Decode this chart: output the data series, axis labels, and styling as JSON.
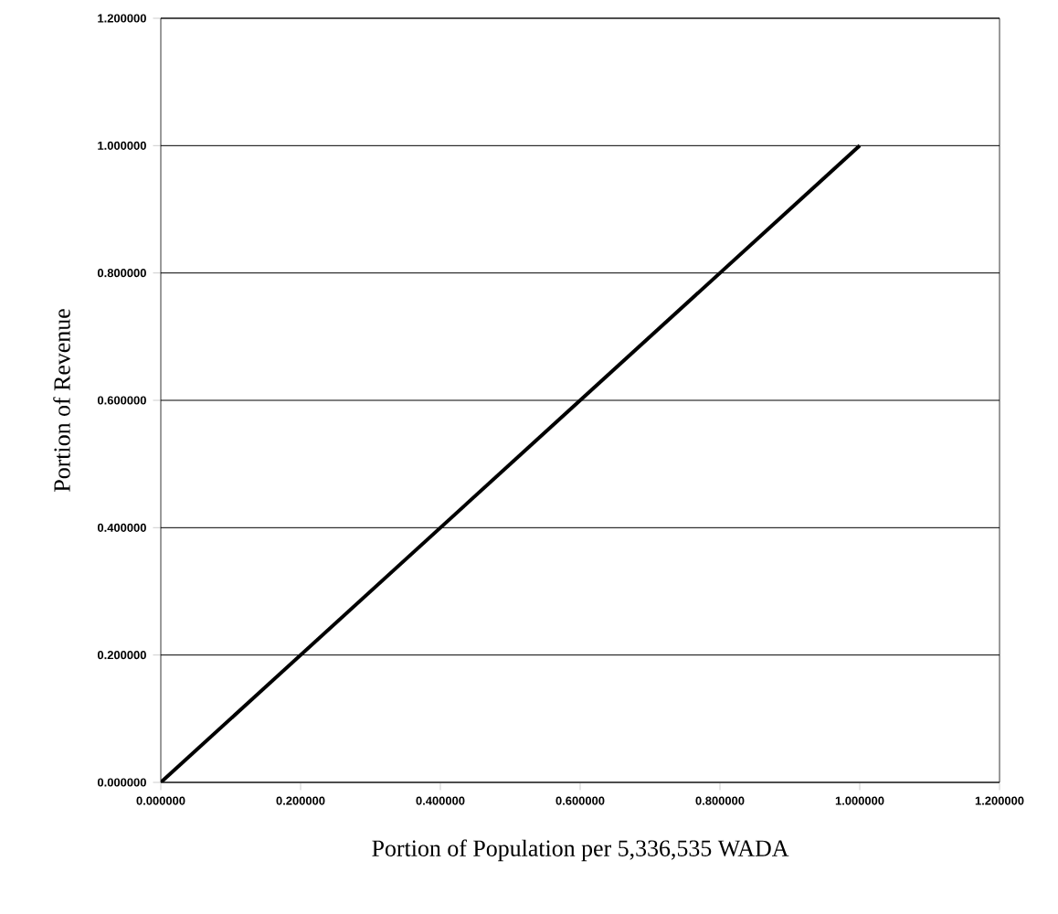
{
  "chart_data": {
    "type": "line",
    "xlabel": "Portion of Population per 5,336,535 WADA",
    "ylabel": "Portion of Revenue",
    "x": [
      0,
      1
    ],
    "series": [
      {
        "color": "#000000",
        "values": [
          0,
          1
        ]
      }
    ],
    "xlim": [
      0,
      1.2
    ],
    "ylim": [
      0,
      1.2
    ],
    "xticks": [
      {
        "value": 0,
        "label": "0.000000"
      },
      {
        "value": 0.2,
        "label": "0.200000"
      },
      {
        "value": 0.4,
        "label": "0.400000"
      },
      {
        "value": 0.6,
        "label": "0.600000"
      },
      {
        "value": 0.8,
        "label": "0.800000"
      },
      {
        "value": 1.0,
        "label": "1.000000"
      },
      {
        "value": 1.2,
        "label": "1.200000"
      }
    ],
    "yticks": [
      {
        "value": 0,
        "label": "0.000000"
      },
      {
        "value": 0.2,
        "label": "0.200000"
      },
      {
        "value": 0.4,
        "label": "0.400000"
      },
      {
        "value": 0.6,
        "label": "0.600000"
      },
      {
        "value": 0.8,
        "label": "0.800000"
      },
      {
        "value": 1.0,
        "label": "1.000000"
      },
      {
        "value": 1.2,
        "label": "1.200000"
      }
    ],
    "grid": "y",
    "marker": "none",
    "line_style": "solid"
  }
}
